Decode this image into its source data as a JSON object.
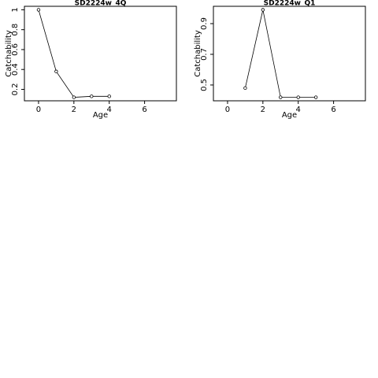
{
  "chart_data": [
    {
      "type": "line",
      "title": "SD2224w_4Q",
      "x_label": "Age",
      "y_label": "Catchability",
      "x": [
        0,
        1,
        2,
        3,
        4
      ],
      "values": [
        1.0,
        0.38,
        0.12,
        0.13,
        0.13
      ],
      "color": "#000000",
      "xlim": [
        -0.8,
        7.8
      ],
      "ylim": [
        0.085,
        1.035
      ],
      "xticks": [
        0,
        2,
        4,
        6
      ],
      "yticks": [
        0.2,
        0.4,
        0.6,
        0.8,
        1.0
      ]
    },
    {
      "type": "line",
      "title": "SD2224w_Q1",
      "x_label": "Age",
      "y_label": "Catchability",
      "x": [
        1,
        2,
        3,
        4,
        5
      ],
      "values": [
        0.48,
        0.99,
        0.42,
        0.42,
        0.42
      ],
      "color": "#000000",
      "xlim": [
        -0.8,
        7.8
      ],
      "ylim": [
        0.397,
        1.013
      ],
      "xticks": [
        0,
        2,
        4,
        6
      ],
      "yticks": [
        0.5,
        0.7,
        0.9
      ]
    }
  ]
}
